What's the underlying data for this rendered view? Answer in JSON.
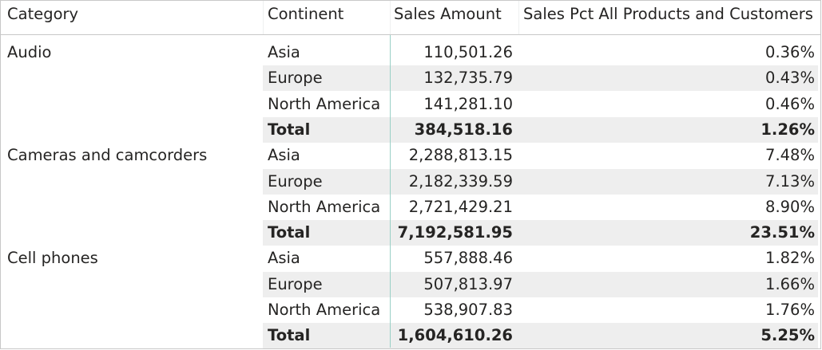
{
  "headers": {
    "category": "Category",
    "continent": "Continent",
    "sales_amount": "Sales Amount",
    "sales_pct": "Sales Pct All Products and Customers"
  },
  "groups": [
    {
      "category": "Audio",
      "rows": [
        {
          "continent": "Asia",
          "amount": "110,501.26",
          "pct": "0.36%"
        },
        {
          "continent": "Europe",
          "amount": "132,735.79",
          "pct": "0.43%"
        },
        {
          "continent": "North America",
          "amount": "141,281.10",
          "pct": "0.46%"
        }
      ],
      "total": {
        "label": "Total",
        "amount": "384,518.16",
        "pct": "1.26%"
      }
    },
    {
      "category": "Cameras and camcorders",
      "rows": [
        {
          "continent": "Asia",
          "amount": "2,288,813.15",
          "pct": "7.48%"
        },
        {
          "continent": "Europe",
          "amount": "2,182,339.59",
          "pct": "7.13%"
        },
        {
          "continent": "North America",
          "amount": "2,721,429.21",
          "pct": "8.90%"
        }
      ],
      "total": {
        "label": "Total",
        "amount": "7,192,581.95",
        "pct": "23.51%"
      }
    },
    {
      "category": "Cell phones",
      "rows": [
        {
          "continent": "Asia",
          "amount": "557,888.46",
          "pct": "1.82%"
        },
        {
          "continent": "Europe",
          "amount": "507,813.97",
          "pct": "1.66%"
        },
        {
          "continent": "North America",
          "amount": "538,907.83",
          "pct": "1.76%"
        }
      ],
      "total": {
        "label": "Total",
        "amount": "1,604,610.26",
        "pct": "5.25%"
      }
    }
  ],
  "colors": {
    "stripe": "#eeeeee",
    "accent_line": "#9ad0c6",
    "text": "#252423"
  }
}
